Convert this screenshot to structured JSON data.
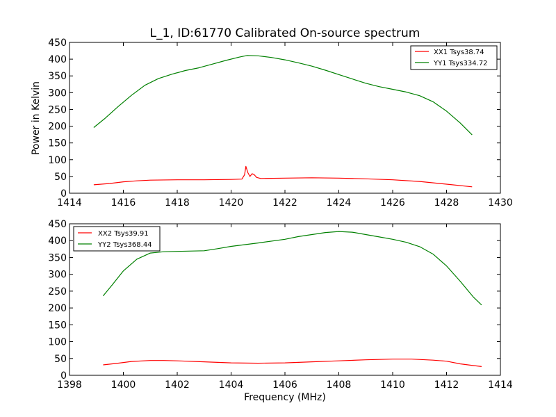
{
  "chart_data": [
    {
      "type": "line",
      "title": "L_1, ID:61770 Calibrated On-source spectrum",
      "xlabel": "",
      "ylabel": "Power in Kelvin",
      "xlim": [
        1414,
        1430
      ],
      "ylim": [
        0,
        450
      ],
      "xticks": [
        1414,
        1416,
        1418,
        1420,
        1422,
        1424,
        1426,
        1428,
        1430
      ],
      "yticks": [
        0,
        50,
        100,
        150,
        200,
        250,
        300,
        350,
        400,
        450
      ],
      "grid": false,
      "legend_position": "top-right",
      "series": [
        {
          "name": "XX1 Tsys38.74",
          "color": "#ff0000",
          "points": [
            [
              1414.9,
              25
            ],
            [
              1415.5,
              29
            ],
            [
              1416,
              34
            ],
            [
              1416.5,
              37
            ],
            [
              1417,
              39
            ],
            [
              1418,
              40
            ],
            [
              1419,
              40
            ],
            [
              1420,
              41
            ],
            [
              1420.4,
              42
            ],
            [
              1420.5,
              55
            ],
            [
              1420.55,
              80
            ],
            [
              1420.62,
              62
            ],
            [
              1420.7,
              50
            ],
            [
              1420.78,
              58
            ],
            [
              1420.85,
              56
            ],
            [
              1420.95,
              47
            ],
            [
              1421.1,
              44
            ],
            [
              1422,
              45
            ],
            [
              1423,
              46
            ],
            [
              1424,
              45
            ],
            [
              1425,
              43
            ],
            [
              1426,
              40
            ],
            [
              1427,
              35
            ],
            [
              1428,
              27
            ],
            [
              1428.95,
              19
            ]
          ]
        },
        {
          "name": "YY1 Tsys334.72",
          "color": "#008000",
          "points": [
            [
              1414.9,
              196
            ],
            [
              1415.3,
              222
            ],
            [
              1415.8,
              258
            ],
            [
              1416.3,
              292
            ],
            [
              1416.8,
              322
            ],
            [
              1417.3,
              342
            ],
            [
              1417.8,
              355
            ],
            [
              1418.3,
              366
            ],
            [
              1418.8,
              374
            ],
            [
              1419.3,
              385
            ],
            [
              1419.8,
              396
            ],
            [
              1420.3,
              406
            ],
            [
              1420.6,
              411
            ],
            [
              1421,
              410
            ],
            [
              1421.5,
              405
            ],
            [
              1422,
              398
            ],
            [
              1422.5,
              389
            ],
            [
              1423,
              379
            ],
            [
              1423.5,
              367
            ],
            [
              1424,
              354
            ],
            [
              1424.5,
              341
            ],
            [
              1425,
              328
            ],
            [
              1425.5,
              318
            ],
            [
              1426,
              310
            ],
            [
              1426.5,
              302
            ],
            [
              1427,
              291
            ],
            [
              1427.5,
              273
            ],
            [
              1428,
              245
            ],
            [
              1428.5,
              210
            ],
            [
              1428.95,
              174
            ]
          ]
        }
      ]
    },
    {
      "type": "line",
      "title": "",
      "xlabel": "Frequency (MHz)",
      "ylabel": "",
      "xlim": [
        1398,
        1414
      ],
      "ylim": [
        0,
        450
      ],
      "xticks": [
        1398,
        1400,
        1402,
        1404,
        1406,
        1408,
        1410,
        1412,
        1414
      ],
      "yticks": [
        0,
        50,
        100,
        150,
        200,
        250,
        300,
        350,
        400,
        450
      ],
      "grid": false,
      "legend_position": "top-left",
      "series": [
        {
          "name": "XX2 Tsys39.91",
          "color": "#ff0000",
          "points": [
            [
              1399.25,
              31
            ],
            [
              1399.8,
              36
            ],
            [
              1400.3,
              41
            ],
            [
              1401,
              44
            ],
            [
              1401.5,
              44
            ],
            [
              1402,
              43
            ],
            [
              1403,
              40
            ],
            [
              1404,
              37
            ],
            [
              1405,
              36
            ],
            [
              1406,
              37
            ],
            [
              1407,
              40
            ],
            [
              1408,
              43
            ],
            [
              1409,
              46
            ],
            [
              1410,
              48
            ],
            [
              1410.7,
              48
            ],
            [
              1411.5,
              45
            ],
            [
              1412,
              42
            ],
            [
              1412.5,
              34
            ],
            [
              1413,
              29
            ],
            [
              1413.3,
              26
            ]
          ]
        },
        {
          "name": "YY2 Tsys368.44",
          "color": "#008000",
          "points": [
            [
              1399.25,
              236
            ],
            [
              1399.6,
              270
            ],
            [
              1400,
              310
            ],
            [
              1400.5,
              345
            ],
            [
              1401,
              363
            ],
            [
              1401.5,
              367
            ],
            [
              1402,
              368
            ],
            [
              1403,
              370
            ],
            [
              1403.5,
              376
            ],
            [
              1404,
              383
            ],
            [
              1405,
              393
            ],
            [
              1406,
              404
            ],
            [
              1406.5,
              412
            ],
            [
              1407,
              418
            ],
            [
              1407.5,
              424
            ],
            [
              1408,
              427
            ],
            [
              1408.5,
              425
            ],
            [
              1409,
              418
            ],
            [
              1409.5,
              411
            ],
            [
              1410,
              404
            ],
            [
              1410.5,
              395
            ],
            [
              1411,
              382
            ],
            [
              1411.5,
              360
            ],
            [
              1412,
              325
            ],
            [
              1412.5,
              280
            ],
            [
              1413,
              232
            ],
            [
              1413.3,
              209
            ]
          ]
        }
      ]
    }
  ]
}
